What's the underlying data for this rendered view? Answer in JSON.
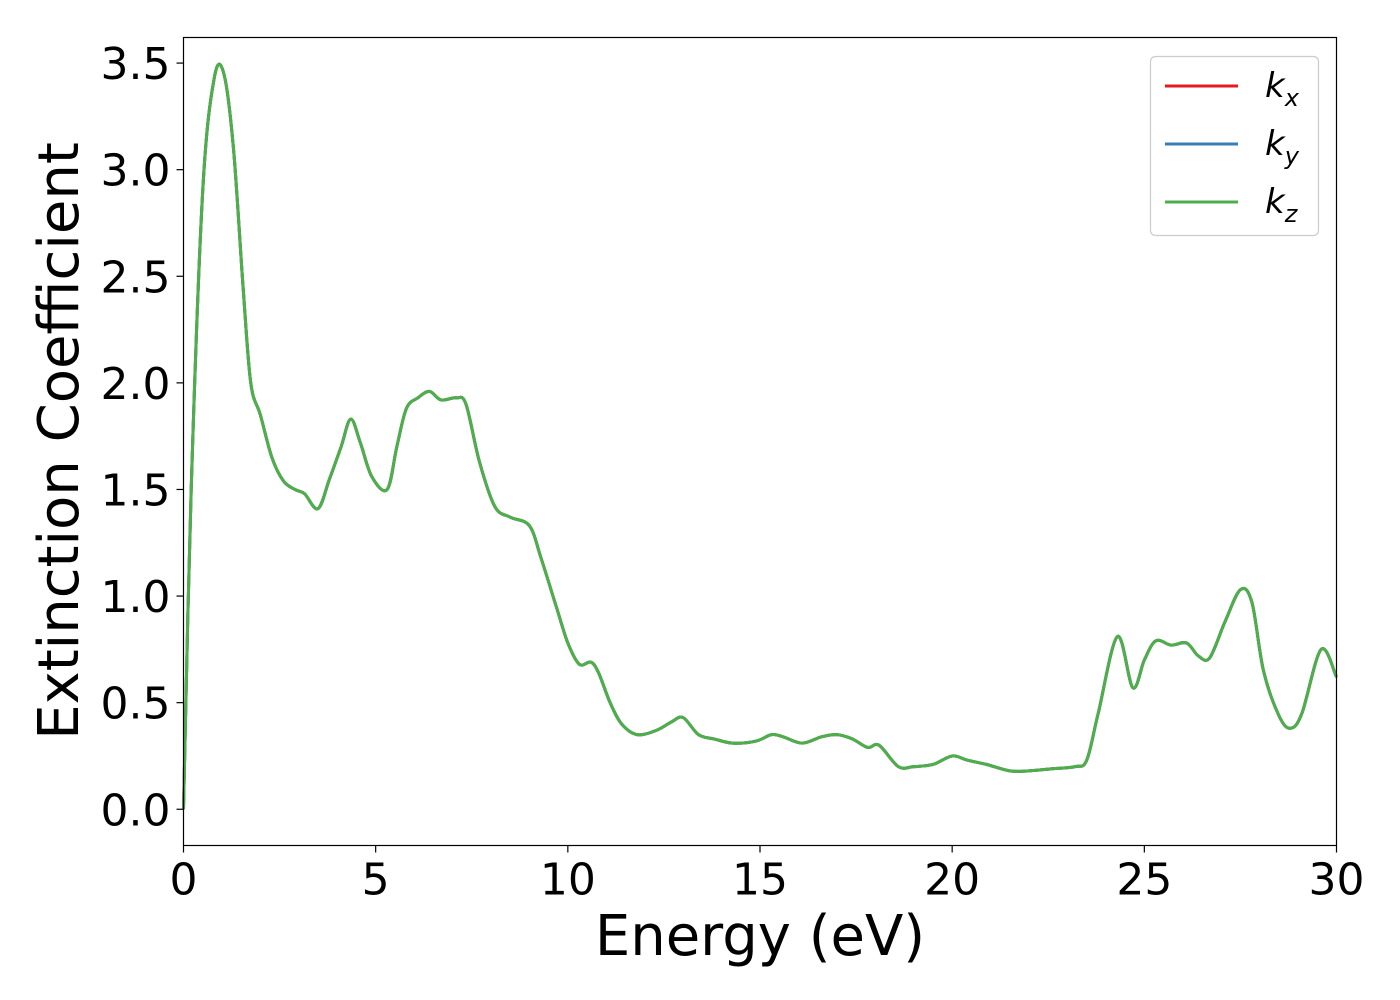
{
  "chart_data": {
    "type": "line",
    "xlabel": "Energy (eV)",
    "ylabel": "Extinction Coefficient",
    "xlim": [
      0,
      30
    ],
    "ylim": [
      -0.17,
      3.62
    ],
    "xticks": [
      0,
      5,
      10,
      15,
      20,
      25,
      30
    ],
    "xtick_labels": [
      "0",
      "5",
      "10",
      "15",
      "20",
      "25",
      "30"
    ],
    "yticks": [
      0.0,
      0.5,
      1.0,
      1.5,
      2.0,
      2.5,
      3.0,
      3.5
    ],
    "ytick_labels": [
      "0.0",
      "0.5",
      "1.0",
      "1.5",
      "2.0",
      "2.5",
      "3.0",
      "3.5"
    ],
    "grid": false,
    "legend_position": "top-right",
    "series": [
      {
        "name": "k_x",
        "label_main": "k",
        "label_sub": "x",
        "color": "#e41a1c",
        "x": [
          0,
          0.2,
          0.5,
          0.8,
          1.05,
          1.3,
          1.55,
          1.75,
          2.0,
          2.3,
          2.6,
          2.9,
          3.15,
          3.5,
          3.8,
          4.1,
          4.35,
          4.6,
          4.9,
          5.3,
          5.55,
          5.8,
          6.1,
          6.4,
          6.7,
          7.1,
          7.35,
          7.7,
          8.1,
          8.5,
          9.0,
          9.3,
          9.7,
          10.0,
          10.3,
          10.6,
          10.8,
          11.1,
          11.4,
          11.8,
          12.3,
          12.7,
          13.0,
          13.4,
          13.8,
          14.3,
          14.9,
          15.3,
          15.6,
          16.1,
          16.6,
          17.0,
          17.4,
          17.8,
          18.1,
          18.6,
          19.0,
          19.5,
          20.0,
          20.4,
          20.9,
          21.5,
          22.0,
          22.6,
          23.2,
          23.5,
          23.8,
          24.3,
          24.7,
          25.0,
          25.3,
          25.7,
          26.1,
          26.4,
          26.7,
          27.1,
          27.5,
          27.8,
          28.1,
          28.5,
          28.8,
          29.1,
          29.6,
          30.0
        ],
        "values": [
          0.0,
          1.5,
          2.9,
          3.43,
          3.45,
          3.1,
          2.45,
          2.0,
          1.85,
          1.65,
          1.54,
          1.5,
          1.48,
          1.41,
          1.55,
          1.7,
          1.83,
          1.72,
          1.56,
          1.5,
          1.7,
          1.88,
          1.93,
          1.96,
          1.92,
          1.93,
          1.9,
          1.63,
          1.42,
          1.37,
          1.33,
          1.18,
          0.95,
          0.78,
          0.68,
          0.69,
          0.64,
          0.5,
          0.4,
          0.35,
          0.37,
          0.41,
          0.43,
          0.35,
          0.33,
          0.31,
          0.32,
          0.35,
          0.34,
          0.31,
          0.34,
          0.35,
          0.33,
          0.29,
          0.3,
          0.2,
          0.2,
          0.21,
          0.25,
          0.23,
          0.21,
          0.18,
          0.18,
          0.19,
          0.2,
          0.23,
          0.45,
          0.81,
          0.57,
          0.7,
          0.79,
          0.77,
          0.78,
          0.72,
          0.71,
          0.88,
          1.03,
          0.97,
          0.65,
          0.44,
          0.38,
          0.45,
          0.75,
          0.62
        ]
      },
      {
        "name": "k_y",
        "label_main": "k",
        "label_sub": "y",
        "color": "#377eb8",
        "x": [
          0,
          0.2,
          0.5,
          0.8,
          1.05,
          1.3,
          1.55,
          1.75,
          2.0,
          2.3,
          2.6,
          2.9,
          3.15,
          3.5,
          3.8,
          4.1,
          4.35,
          4.6,
          4.9,
          5.3,
          5.55,
          5.8,
          6.1,
          6.4,
          6.7,
          7.1,
          7.35,
          7.7,
          8.1,
          8.5,
          9.0,
          9.3,
          9.7,
          10.0,
          10.3,
          10.6,
          10.8,
          11.1,
          11.4,
          11.8,
          12.3,
          12.7,
          13.0,
          13.4,
          13.8,
          14.3,
          14.9,
          15.3,
          15.6,
          16.1,
          16.6,
          17.0,
          17.4,
          17.8,
          18.1,
          18.6,
          19.0,
          19.5,
          20.0,
          20.4,
          20.9,
          21.5,
          22.0,
          22.6,
          23.2,
          23.5,
          23.8,
          24.3,
          24.7,
          25.0,
          25.3,
          25.7,
          26.1,
          26.4,
          26.7,
          27.1,
          27.5,
          27.8,
          28.1,
          28.5,
          28.8,
          29.1,
          29.6,
          30.0
        ],
        "values": [
          0.0,
          1.5,
          2.9,
          3.43,
          3.45,
          3.1,
          2.45,
          2.0,
          1.85,
          1.65,
          1.54,
          1.5,
          1.48,
          1.41,
          1.55,
          1.7,
          1.83,
          1.72,
          1.56,
          1.5,
          1.7,
          1.88,
          1.93,
          1.96,
          1.92,
          1.93,
          1.9,
          1.63,
          1.42,
          1.37,
          1.33,
          1.18,
          0.95,
          0.78,
          0.68,
          0.69,
          0.64,
          0.5,
          0.4,
          0.35,
          0.37,
          0.41,
          0.43,
          0.35,
          0.33,
          0.31,
          0.32,
          0.35,
          0.34,
          0.31,
          0.34,
          0.35,
          0.33,
          0.29,
          0.3,
          0.2,
          0.2,
          0.21,
          0.25,
          0.23,
          0.21,
          0.18,
          0.18,
          0.19,
          0.2,
          0.23,
          0.45,
          0.81,
          0.57,
          0.7,
          0.79,
          0.77,
          0.78,
          0.72,
          0.71,
          0.88,
          1.03,
          0.97,
          0.65,
          0.44,
          0.38,
          0.45,
          0.75,
          0.62
        ]
      },
      {
        "name": "k_z",
        "label_main": "k",
        "label_sub": "z",
        "color": "#4daf4a",
        "x": [
          0,
          0.2,
          0.5,
          0.8,
          1.05,
          1.3,
          1.55,
          1.75,
          2.0,
          2.3,
          2.6,
          2.9,
          3.15,
          3.5,
          3.8,
          4.1,
          4.35,
          4.6,
          4.9,
          5.3,
          5.55,
          5.8,
          6.1,
          6.4,
          6.7,
          7.1,
          7.35,
          7.7,
          8.1,
          8.5,
          9.0,
          9.3,
          9.7,
          10.0,
          10.3,
          10.6,
          10.8,
          11.1,
          11.4,
          11.8,
          12.3,
          12.7,
          13.0,
          13.4,
          13.8,
          14.3,
          14.9,
          15.3,
          15.6,
          16.1,
          16.6,
          17.0,
          17.4,
          17.8,
          18.1,
          18.6,
          19.0,
          19.5,
          20.0,
          20.4,
          20.9,
          21.5,
          22.0,
          22.6,
          23.2,
          23.5,
          23.8,
          24.3,
          24.7,
          25.0,
          25.3,
          25.7,
          26.1,
          26.4,
          26.7,
          27.1,
          27.5,
          27.8,
          28.1,
          28.5,
          28.8,
          29.1,
          29.6,
          30.0
        ],
        "values": [
          0.0,
          1.5,
          2.9,
          3.43,
          3.45,
          3.1,
          2.45,
          2.0,
          1.85,
          1.65,
          1.54,
          1.5,
          1.48,
          1.41,
          1.55,
          1.7,
          1.83,
          1.72,
          1.56,
          1.5,
          1.7,
          1.88,
          1.93,
          1.96,
          1.92,
          1.93,
          1.9,
          1.63,
          1.42,
          1.37,
          1.33,
          1.18,
          0.95,
          0.78,
          0.68,
          0.69,
          0.64,
          0.5,
          0.4,
          0.35,
          0.37,
          0.41,
          0.43,
          0.35,
          0.33,
          0.31,
          0.32,
          0.35,
          0.34,
          0.31,
          0.34,
          0.35,
          0.33,
          0.29,
          0.3,
          0.2,
          0.2,
          0.21,
          0.25,
          0.23,
          0.21,
          0.18,
          0.18,
          0.19,
          0.2,
          0.23,
          0.45,
          0.81,
          0.57,
          0.7,
          0.79,
          0.77,
          0.78,
          0.72,
          0.71,
          0.88,
          1.03,
          0.97,
          0.65,
          0.44,
          0.38,
          0.45,
          0.75,
          0.62
        ]
      }
    ]
  }
}
